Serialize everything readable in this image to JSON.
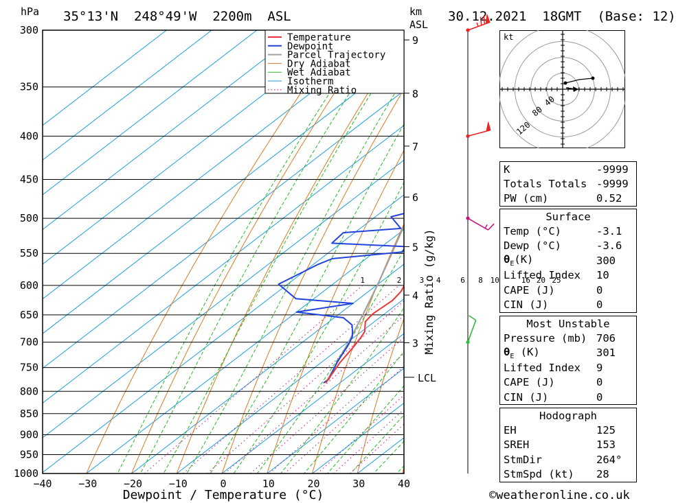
{
  "header": {
    "units_left": "hPa",
    "location": "35°13'N  248°49'W  2200m  ASL",
    "km_label": "km",
    "asl_label": "ASL",
    "datetime": "30.12.2021  18GMT  (Base: 12)"
  },
  "colors": {
    "temperature": "#ee3333",
    "dewpoint": "#2244dd",
    "parcel": "#a0a0a0",
    "dry_adiabat": "#e07820",
    "wet_adiabat": "#22bb22",
    "isotherm": "#1e9ee6",
    "mixing_ratio": "#cc2288",
    "wind_red": "#ee2222",
    "wind_magenta": "#cc1177",
    "wind_green": "#33bb33"
  },
  "chart_data": {
    "type": "line",
    "title": "35°13'N 248°49'W 2200m ASL",
    "xlabel": "Dewpoint / Temperature (°C)",
    "ylabel": "hPa",
    "xlim": [
      -40,
      40
    ],
    "ylim": [
      1000,
      300
    ],
    "x_ticks": [
      "−40",
      "−30",
      "−20",
      "−10",
      "0",
      "10",
      "20",
      "30",
      "40"
    ],
    "pressure_levels": [
      "300",
      "350",
      "400",
      "450",
      "500",
      "550",
      "600",
      "650",
      "700",
      "750",
      "800",
      "850",
      "900",
      "950",
      "1000"
    ],
    "km_ticks": [
      {
        "km": "9",
        "p": 308
      },
      {
        "km": "8",
        "p": 356
      },
      {
        "km": "7",
        "p": 411
      },
      {
        "km": "6",
        "p": 472
      },
      {
        "km": "5",
        "p": 540
      },
      {
        "km": "4",
        "p": 616
      },
      {
        "km": "3",
        "p": 701
      }
    ],
    "lcl": {
      "label": "LCL",
      "p": 770
    },
    "mixing_ratio_axis_label": "Mixing Ratio (g/kg)",
    "mixing_ratio_values": [
      "1",
      "2",
      "3",
      "4",
      "6",
      "8",
      "10",
      "16",
      "20",
      "25"
    ],
    "legend": [
      "Temperature",
      "Dewpoint",
      "Parcel Trajectory",
      "Dry Adiabat",
      "Wet Adiabat",
      "Isotherm",
      "Mixing Ratio"
    ],
    "series": [
      {
        "name": "Temperature",
        "points": [
          [
            782,
            -3.1
          ],
          [
            740,
            -5.8
          ],
          [
            706,
            -7.5
          ],
          [
            690,
            -8.5
          ],
          [
            680,
            -9.3
          ],
          [
            662,
            -12.0
          ],
          [
            648,
            -12.6
          ],
          [
            625,
            -12.1
          ],
          [
            610,
            -12.8
          ],
          [
            590,
            -14.8
          ],
          [
            555,
            -18.5
          ],
          [
            545,
            -20.0
          ],
          [
            520,
            -23.5
          ],
          [
            500,
            -25.6
          ],
          [
            480,
            -28.3
          ],
          [
            450,
            -32.8
          ],
          [
            420,
            -37.5
          ],
          [
            398,
            -42.5
          ],
          [
            385,
            -41.5
          ],
          [
            370,
            -43.0
          ],
          [
            350,
            -47.0
          ],
          [
            330,
            -52.0
          ],
          [
            310,
            -55.5
          ],
          [
            301,
            -58.0
          ]
        ]
      },
      {
        "name": "Dewpoint",
        "points": [
          [
            782,
            -3.6
          ],
          [
            774,
            -3.5
          ],
          [
            740,
            -6.5
          ],
          [
            706,
            -9.0
          ],
          [
            690,
            -10.5
          ],
          [
            680,
            -12.0
          ],
          [
            668,
            -14.0
          ],
          [
            655,
            -18.0
          ],
          [
            645,
            -30.0
          ],
          [
            630,
            -20.0
          ],
          [
            622,
            -34.0
          ],
          [
            598,
            -42.0
          ],
          [
            567,
            -39.0
          ],
          [
            558,
            -37.5
          ],
          [
            548,
            -24.0
          ],
          [
            540,
            -24.5
          ],
          [
            535,
            -42.0
          ],
          [
            520,
            -42.5
          ],
          [
            514,
            -31.0
          ],
          [
            498,
            -36.5
          ],
          [
            490,
            -33.0
          ],
          [
            470,
            -33.5
          ],
          [
            440,
            -37.5
          ],
          [
            415,
            -43.0
          ],
          [
            400,
            -48.5
          ],
          [
            388,
            -60.0
          ],
          [
            380,
            -60.5
          ],
          [
            372,
            -54.0
          ],
          [
            355,
            -53.0
          ],
          [
            337,
            -58.0
          ],
          [
            320,
            -59.0
          ],
          [
            312,
            -56.0
          ],
          [
            304,
            -56.0
          ],
          [
            300,
            -57.0
          ]
        ]
      },
      {
        "name": "Parcel Trajectory",
        "points": [
          [
            782,
            -3.1
          ],
          [
            740,
            -6.4
          ],
          [
            700,
            -9.8
          ],
          [
            650,
            -14.5
          ],
          [
            600,
            -19.8
          ],
          [
            550,
            -25.8
          ],
          [
            500,
            -32.5
          ],
          [
            450,
            -40.0
          ],
          [
            400,
            -48.5
          ],
          [
            350,
            -58.5
          ],
          [
            300,
            -69.5
          ]
        ]
      }
    ]
  },
  "hodograph": {
    "unit": "kt",
    "ring_labels": [
      "40",
      "80",
      "120"
    ]
  },
  "wind_barbs": [
    {
      "p": 300,
      "dir": 250,
      "speed": 75
    },
    {
      "p": 400,
      "dir": 255,
      "speed": 50
    },
    {
      "p": 500,
      "dir": 300,
      "speed": 15
    },
    {
      "p": 700,
      "dir": 200,
      "speed": 10
    }
  ],
  "indices": {
    "k_label": "K",
    "k_value": "-9999",
    "tt_label": "Totals Totals",
    "tt_value": "-9999",
    "pw_label": "PW (cm)",
    "pw_value": "0.52"
  },
  "surface": {
    "title": "Surface",
    "temp_label": "Temp (°C)",
    "temp_value": "-3.1",
    "dewp_label": "Dewp (°C)",
    "dewp_value": "-3.6",
    "theta_label": "(K)",
    "theta_value": "300",
    "li_label": "Lifted Index",
    "li_value": "10",
    "cape_label": "CAPE (J)",
    "cape_value": "0",
    "cin_label": "CIN (J)",
    "cin_value": "0"
  },
  "most_unstable": {
    "title": "Most Unstable",
    "pressure_label": "Pressure (mb)",
    "pressure_value": "706",
    "theta_label": " (K)",
    "theta_value": "301",
    "li_label": "Lifted Index",
    "li_value": "9",
    "cape_label": "CAPE (J)",
    "cape_value": "0",
    "cin_label": "CIN (J)",
    "cin_value": "0"
  },
  "hodo_table": {
    "title": "Hodograph",
    "eh_label": "EH",
    "eh_value": "125",
    "sreh_label": "SREH",
    "sreh_value": "153",
    "stmdir_label": "StmDir",
    "stmdir_value": "264°",
    "stmspd_label": "StmSpd (kt)",
    "stmspd_value": "28"
  },
  "credit": "©weatheronline.co.uk"
}
